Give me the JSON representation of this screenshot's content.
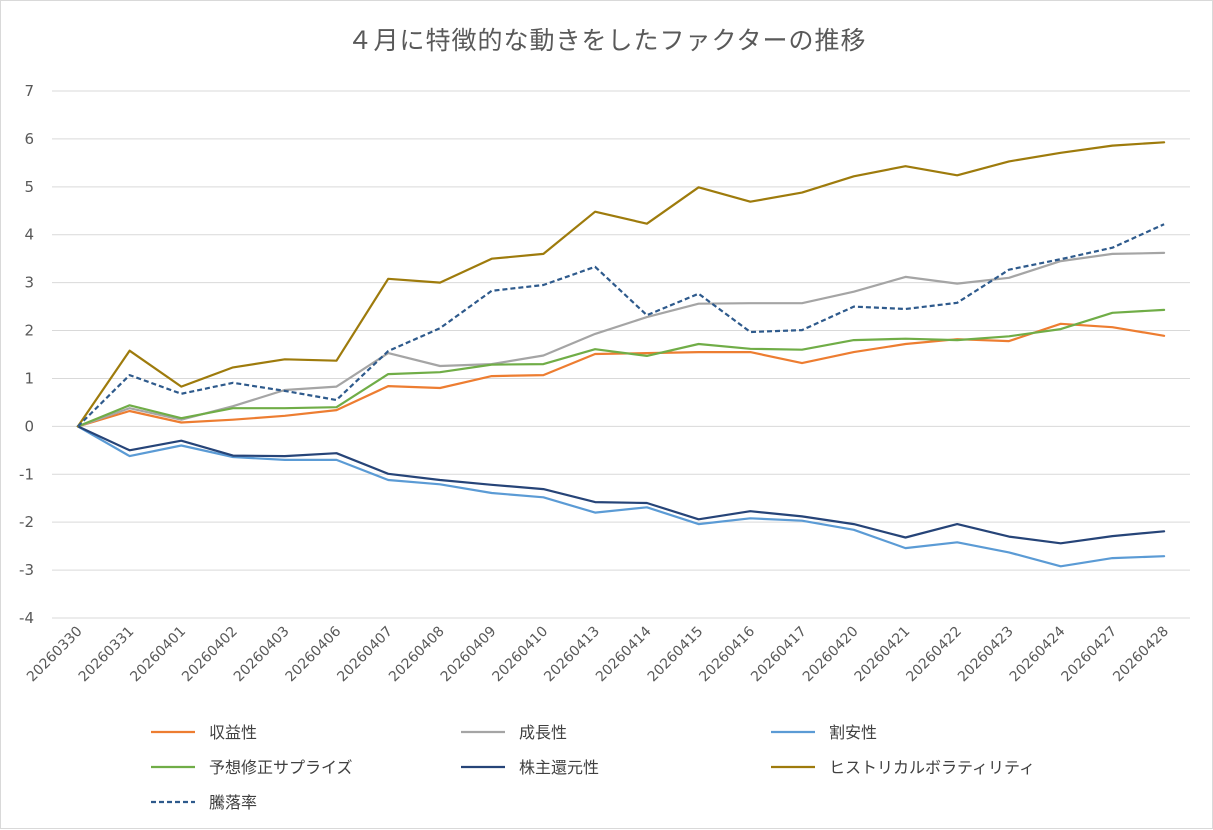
{
  "chart_data": {
    "type": "line",
    "title": "４月に特徴的な動きをしたファクターの推移",
    "xlabel": "",
    "ylabel": "",
    "ylim": [
      -4,
      7
    ],
    "yticks": [
      7,
      6,
      5,
      4,
      3,
      2,
      1,
      0,
      -1,
      -2,
      -3,
      -4
    ],
    "grid": true,
    "legend_position": "bottom",
    "categories": [
      "20260330",
      "20260331",
      "20260401",
      "20260402",
      "20260403",
      "20260406",
      "20260407",
      "20260408",
      "20260409",
      "20260410",
      "20260413",
      "20260414",
      "20260415",
      "20260416",
      "20260417",
      "20260420",
      "20260421",
      "20260422",
      "20260423",
      "20260424",
      "20260427",
      "20260428"
    ],
    "series": [
      {
        "name": "収益性",
        "color": "#ED7D31",
        "dash": false,
        "values": [
          0,
          0.32,
          0.08,
          0.14,
          0.22,
          0.34,
          0.84,
          0.8,
          1.05,
          1.07,
          1.51,
          1.53,
          1.55,
          1.55,
          1.32,
          1.55,
          1.72,
          1.82,
          1.78,
          2.14,
          2.07,
          1.89
        ]
      },
      {
        "name": "成長性",
        "color": "#A5A5A5",
        "dash": false,
        "values": [
          0,
          0.38,
          0.14,
          0.42,
          0.76,
          0.83,
          1.53,
          1.26,
          1.3,
          1.48,
          1.93,
          2.28,
          2.56,
          2.57,
          2.57,
          2.81,
          3.12,
          2.98,
          3.1,
          3.45,
          3.6,
          3.62
        ]
      },
      {
        "name": "割安性",
        "color": "#5B9BD5",
        "dash": false,
        "values": [
          0,
          -0.62,
          -0.4,
          -0.64,
          -0.7,
          -0.7,
          -1.12,
          -1.21,
          -1.39,
          -1.48,
          -1.8,
          -1.69,
          -2.04,
          -1.92,
          -1.97,
          -2.16,
          -2.54,
          -2.42,
          -2.63,
          -2.92,
          -2.75,
          -2.71
        ]
      },
      {
        "name": "予想修正サプライズ",
        "color": "#70AD47",
        "dash": false,
        "values": [
          0,
          0.44,
          0.17,
          0.38,
          0.38,
          0.4,
          1.09,
          1.13,
          1.29,
          1.3,
          1.61,
          1.47,
          1.72,
          1.62,
          1.6,
          1.8,
          1.83,
          1.8,
          1.88,
          2.03,
          2.37,
          2.43
        ]
      },
      {
        "name": "株主還元性",
        "color": "#264478",
        "dash": false,
        "values": [
          0,
          -0.5,
          -0.3,
          -0.61,
          -0.62,
          -0.56,
          -0.99,
          -1.12,
          -1.22,
          -1.31,
          -1.58,
          -1.6,
          -1.94,
          -1.77,
          -1.88,
          -2.04,
          -2.32,
          -2.04,
          -2.3,
          -2.44,
          -2.29,
          -2.19
        ]
      },
      {
        "name": "ヒストリカルボラティリティ",
        "color": "#9E7B0C",
        "dash": false,
        "values": [
          0,
          1.58,
          0.83,
          1.23,
          1.4,
          1.37,
          3.08,
          3.0,
          3.5,
          3.6,
          4.48,
          4.23,
          4.99,
          4.69,
          4.88,
          5.22,
          5.43,
          5.24,
          5.53,
          5.71,
          5.86,
          5.93
        ]
      },
      {
        "name": "騰落率",
        "color": "#2E5A8C",
        "dash": true,
        "values": [
          0,
          1.07,
          0.68,
          0.91,
          0.74,
          0.55,
          1.57,
          2.05,
          2.83,
          2.95,
          3.33,
          2.32,
          2.77,
          1.97,
          2.01,
          2.5,
          2.45,
          2.58,
          3.27,
          3.49,
          3.73,
          4.22
        ]
      }
    ]
  }
}
